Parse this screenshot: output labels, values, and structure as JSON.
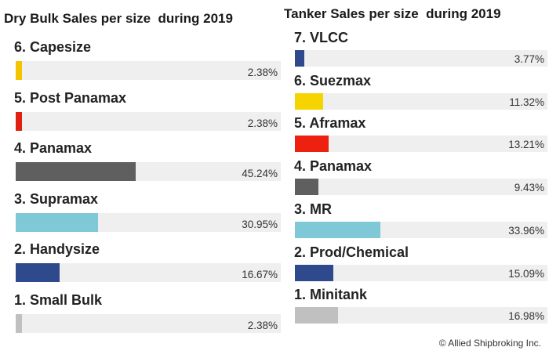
{
  "chart_data": [
    {
      "type": "bar",
      "orientation": "horizontal",
      "title": "Dry Bulk Sales per size  during 2019",
      "categories": [
        "6. Capesize",
        "5. Post Panamax",
        "4. Panamax",
        "3. Supramax",
        "2. Handysize",
        "1. Small Bulk"
      ],
      "values": [
        2.38,
        2.38,
        45.24,
        30.95,
        16.67,
        2.38
      ],
      "value_labels": [
        "2.38%",
        "2.38%",
        "45.24%",
        "30.95%",
        "16.67%",
        "2.38%"
      ],
      "colors": [
        "#f5c400",
        "#e02010",
        "#5f5f5f",
        "#7ec8d8",
        "#2e4a8c",
        "#c0c0c0"
      ],
      "xlim": [
        0,
        100
      ],
      "grid": false,
      "legend": "none"
    },
    {
      "type": "bar",
      "orientation": "horizontal",
      "title": "Tanker Sales per size  during 2019",
      "categories": [
        "7. VLCC",
        "6. Suezmax",
        "5. Aframax",
        "4. Panamax",
        "3. MR",
        "2. Prod/Chemical",
        "1. Minitank"
      ],
      "values": [
        3.77,
        11.32,
        13.21,
        9.43,
        33.96,
        15.09,
        16.98
      ],
      "value_labels": [
        "3.77%",
        "11.32%",
        "13.21%",
        "9.43%",
        "33.96%",
        "15.09%",
        "16.98%"
      ],
      "colors": [
        "#2e4a8c",
        "#f5d400",
        "#ee2010",
        "#5f5f5f",
        "#7ec8d8",
        "#2e4a8c",
        "#c0c0c0"
      ],
      "xlim": [
        0,
        100
      ],
      "grid": false,
      "legend": "none"
    }
  ],
  "footer": {
    "copyright": "© Allied Shipbroking Inc."
  }
}
